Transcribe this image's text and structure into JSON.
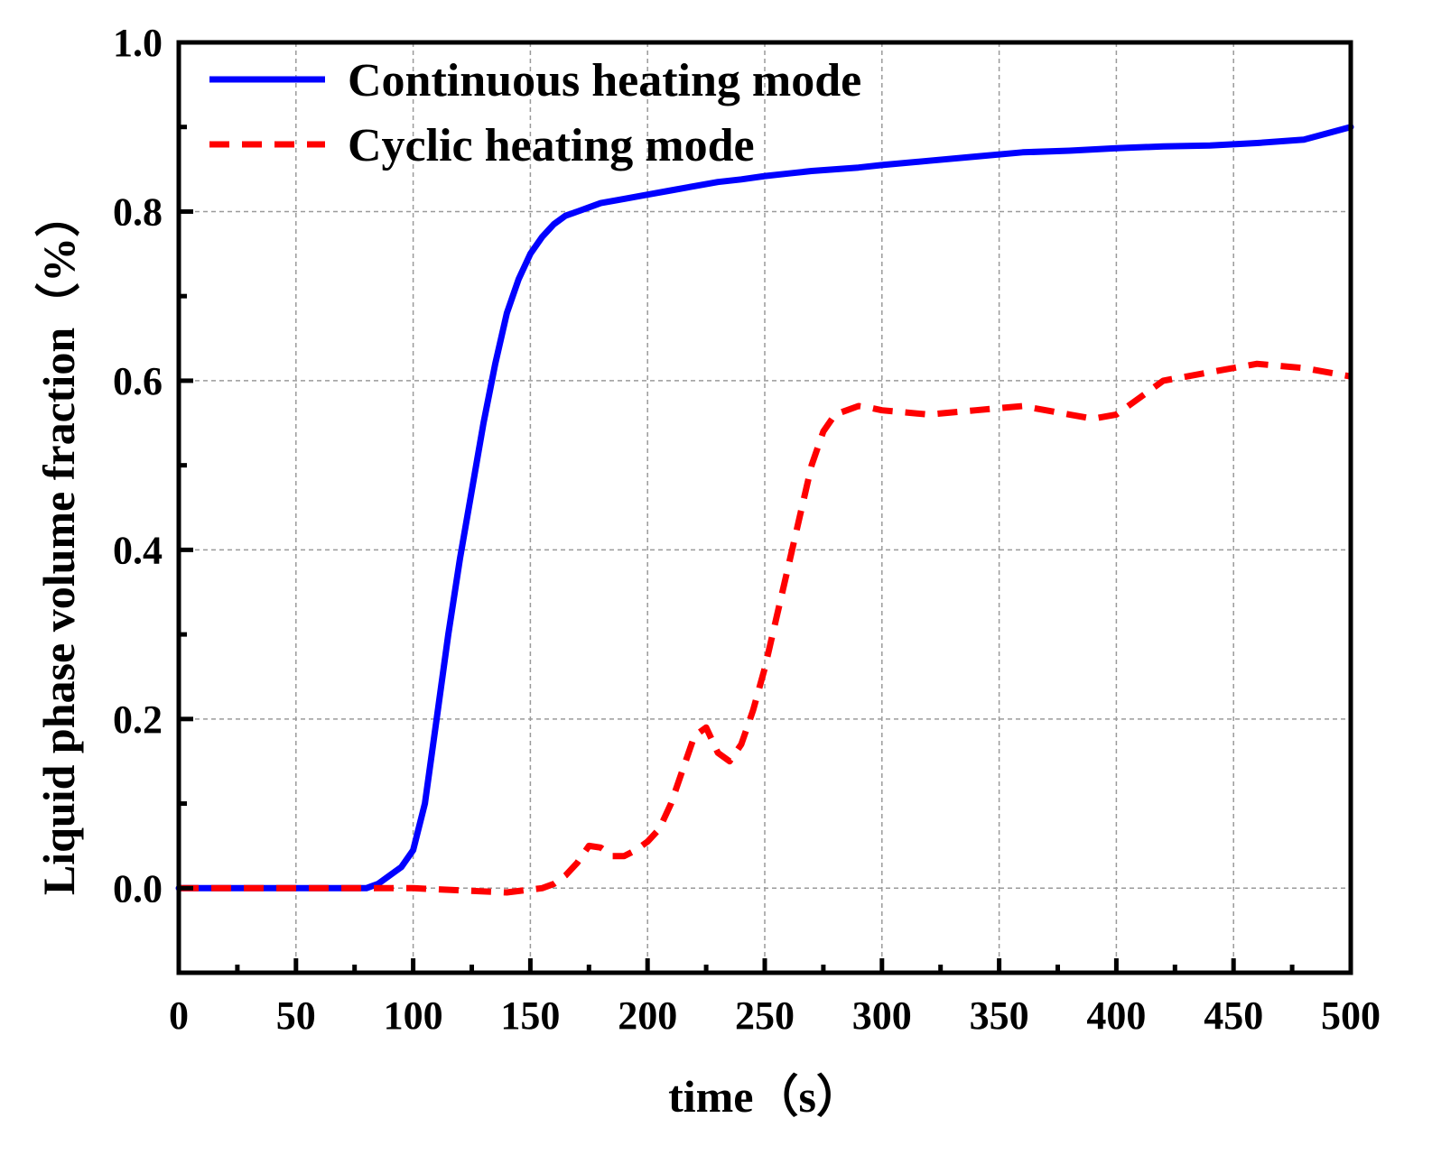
{
  "chart_data": {
    "type": "line",
    "title": "",
    "xlabel": "time（s）",
    "ylabel": "Liquid phase volume fraction（%）",
    "xlim": [
      0,
      500
    ],
    "ylim": [
      -0.1,
      1.0
    ],
    "grid": true,
    "legend_position": "top-left",
    "x_ticks": [
      0,
      50,
      100,
      150,
      200,
      250,
      300,
      350,
      400,
      450,
      500
    ],
    "x_tick_labels": [
      "0",
      "50",
      "100",
      "150",
      "200",
      "250",
      "300",
      "350",
      "400",
      "450",
      "500"
    ],
    "y_ticks": [
      0.0,
      0.2,
      0.4,
      0.6,
      0.8,
      1.0
    ],
    "y_tick_labels": [
      "0.0",
      "0.2",
      "0.4",
      "0.6",
      "0.8",
      "1.0"
    ],
    "series": [
      {
        "name": "Continuous heating mode",
        "color": "#0000ff",
        "style": "solid",
        "x": [
          0,
          20,
          40,
          60,
          80,
          85,
          90,
          95,
          100,
          105,
          110,
          115,
          120,
          125,
          130,
          135,
          140,
          145,
          150,
          155,
          160,
          165,
          170,
          175,
          180,
          190,
          200,
          210,
          220,
          230,
          240,
          250,
          260,
          270,
          280,
          290,
          300,
          320,
          340,
          360,
          380,
          400,
          420,
          440,
          460,
          480,
          500
        ],
        "y": [
          0.0,
          0.0,
          0.0,
          0.0,
          0.0,
          0.005,
          0.015,
          0.025,
          0.045,
          0.1,
          0.2,
          0.3,
          0.39,
          0.47,
          0.55,
          0.62,
          0.68,
          0.72,
          0.75,
          0.77,
          0.785,
          0.795,
          0.8,
          0.805,
          0.81,
          0.815,
          0.82,
          0.825,
          0.83,
          0.835,
          0.838,
          0.842,
          0.845,
          0.848,
          0.85,
          0.852,
          0.855,
          0.86,
          0.865,
          0.87,
          0.872,
          0.875,
          0.877,
          0.878,
          0.881,
          0.885,
          0.9
        ]
      },
      {
        "name": "Cyclic heating mode",
        "color": "#ff0000",
        "style": "dashed",
        "x": [
          0,
          50,
          100,
          140,
          155,
          160,
          165,
          170,
          175,
          180,
          185,
          190,
          195,
          200,
          205,
          210,
          215,
          220,
          225,
          230,
          235,
          240,
          245,
          250,
          255,
          260,
          265,
          270,
          275,
          280,
          285,
          290,
          295,
          300,
          320,
          340,
          360,
          380,
          390,
          400,
          410,
          420,
          440,
          460,
          480,
          500
        ],
        "y": [
          0.0,
          0.0,
          0.0,
          -0.005,
          0.0,
          0.005,
          0.015,
          0.03,
          0.05,
          0.048,
          0.038,
          0.038,
          0.045,
          0.055,
          0.07,
          0.1,
          0.14,
          0.18,
          0.19,
          0.16,
          0.15,
          0.17,
          0.21,
          0.26,
          0.32,
          0.38,
          0.44,
          0.5,
          0.54,
          0.56,
          0.565,
          0.57,
          0.568,
          0.565,
          0.56,
          0.565,
          0.57,
          0.56,
          0.555,
          0.56,
          0.58,
          0.6,
          0.61,
          0.62,
          0.615,
          0.605
        ]
      }
    ]
  }
}
